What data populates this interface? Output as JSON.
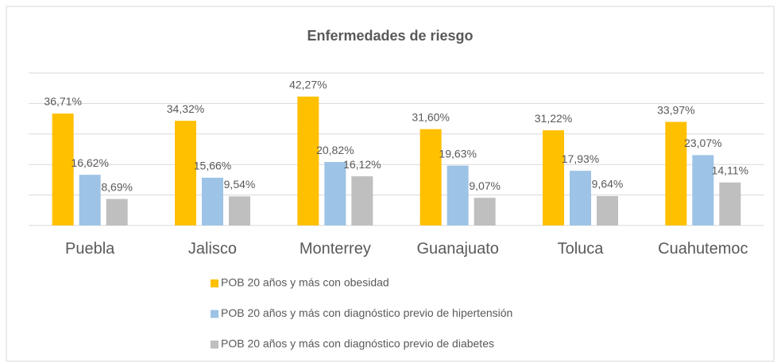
{
  "chart_data": {
    "type": "bar",
    "title": "Enfermedades de riesgo",
    "categories": [
      "Puebla",
      "Jalisco",
      "Monterrey",
      "Guanajuato",
      "Toluca",
      "Cuahutemoc"
    ],
    "series": [
      {
        "name": "POB 20 años y más con obesidad",
        "color": "#FFC000",
        "values": [
          36.71,
          34.32,
          42.27,
          31.6,
          31.22,
          33.97
        ],
        "value_labels": [
          "36,71%",
          "34,32%",
          "42,27%",
          "31,60%",
          "31,22%",
          "33,97%"
        ]
      },
      {
        "name": "POB 20 años y más con diagnóstico previo de hipertensión",
        "color": "#9DC3E6",
        "values": [
          16.62,
          15.66,
          20.82,
          19.63,
          17.93,
          23.07
        ],
        "value_labels": [
          "16,62%",
          "15,66%",
          "20,82%",
          "19,63%",
          "17,93%",
          "23,07%"
        ]
      },
      {
        "name": "POB 20 años y más con diagnóstico previo de diabetes",
        "color": "#BFBFBF",
        "values": [
          8.69,
          9.54,
          16.12,
          9.07,
          9.64,
          14.11
        ],
        "value_labels": [
          "8,69%",
          "9,54%",
          "16,12%",
          "9,07%",
          "9,64%",
          "14,11%"
        ]
      }
    ],
    "ylim": [
      0,
      50
    ],
    "yticks": [
      0,
      10,
      20,
      30,
      40,
      50
    ],
    "grid": true,
    "legend": "bottom"
  }
}
